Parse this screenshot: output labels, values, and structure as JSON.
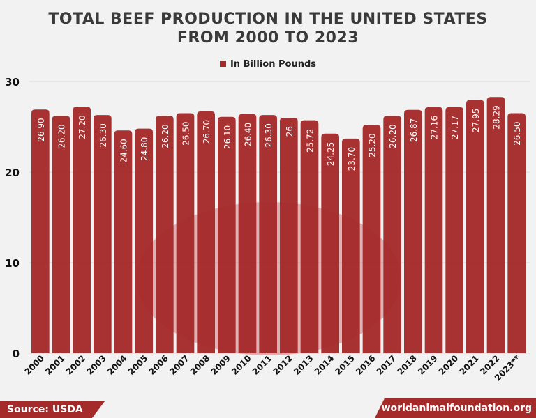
{
  "chart_data": {
    "type": "bar",
    "title": "TOTAL BEEF PRODUCTION IN THE UNITED STATES FROM 2000 TO 2023",
    "series": [
      {
        "name": "In Billion Pounds",
        "values": [
          26.9,
          26.2,
          27.2,
          26.3,
          24.6,
          24.8,
          26.2,
          26.5,
          26.7,
          26.1,
          26.4,
          26.3,
          26,
          25.72,
          24.25,
          23.7,
          25.2,
          26.2,
          26.87,
          27.16,
          27.17,
          27.95,
          28.29,
          26.5
        ]
      }
    ],
    "data_labels": [
      "26.90",
      "26.20",
      "27.20",
      "26.30",
      "24.60",
      "24.80",
      "26.20",
      "26.50",
      "26.70",
      "26.10",
      "26.40",
      "26.30",
      "26",
      "25.72",
      "24.25",
      "23.70",
      "25.20",
      "26.20",
      "26.87",
      "27.16",
      "27.17",
      "27.95",
      "28.29",
      "26.50"
    ],
    "categories": [
      "2000",
      "2001",
      "2002",
      "2003",
      "2004",
      "2005",
      "2006",
      "2007",
      "2008",
      "2009",
      "2010",
      "2011",
      "2012",
      "2013",
      "2014",
      "2015",
      "2016",
      "2017",
      "2018",
      "2019",
      "2020",
      "2021",
      "2022",
      "2023**"
    ],
    "ylim": [
      0,
      30
    ],
    "yticks": [
      0,
      10,
      20,
      30
    ],
    "legend": "top-center",
    "grid": true,
    "bar_color": "#a52a2a"
  },
  "footer": {
    "source": "Source: USDA",
    "site": "worldanimalfoundation.org"
  }
}
